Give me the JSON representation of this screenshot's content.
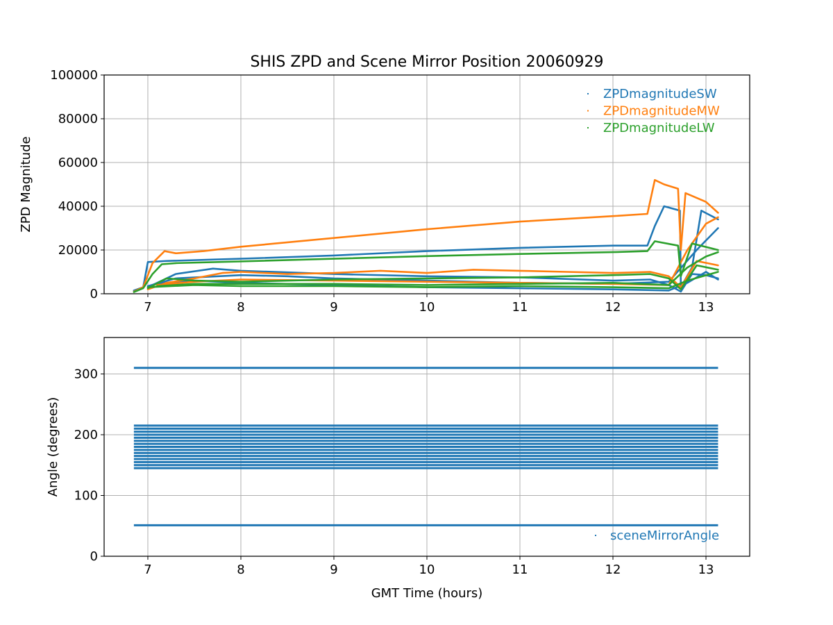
{
  "chart_data": [
    {
      "id": "zpd",
      "type": "scatter",
      "title": "SHIS ZPD and Scene Mirror Position 20060929",
      "xlabel": "",
      "ylabel": "ZPD Magnitude",
      "xlim": [
        6.53,
        13.47
      ],
      "ylim": [
        0,
        100000
      ],
      "xticks": [
        7,
        8,
        9,
        10,
        11,
        12,
        13
      ],
      "yticks": [
        0,
        20000,
        40000,
        60000,
        80000,
        100000
      ],
      "grid": true,
      "legend_position": "upper right",
      "series": [
        {
          "name": "ZPDmagnitudeSW",
          "color": "#1f77b4",
          "lines": [
            [
              [
                6.85,
                1500
              ],
              [
                6.95,
                3000
              ],
              [
                7.0,
                14500
              ],
              [
                7.2,
                15000
              ],
              [
                8.0,
                16000
              ],
              [
                9.0,
                17500
              ],
              [
                10.0,
                19500
              ],
              [
                11.0,
                21000
              ],
              [
                12.0,
                22000
              ],
              [
                12.37,
                22000
              ],
              [
                12.45,
                31000
              ],
              [
                12.55,
                40000
              ],
              [
                12.72,
                38000
              ],
              [
                12.73,
                3000
              ],
              [
                12.85,
                12000
              ],
              [
                12.95,
                38000
              ],
              [
                13.13,
                34000
              ]
            ],
            [
              [
                7.0,
                3000
              ],
              [
                7.1,
                5000
              ],
              [
                7.3,
                9000
              ],
              [
                7.7,
                11500
              ],
              [
                8.0,
                10500
              ],
              [
                9.0,
                9000
              ],
              [
                10.0,
                8000
              ],
              [
                11.0,
                7500
              ],
              [
                12.0,
                6000
              ],
              [
                12.4,
                6500
              ],
              [
                12.6,
                4000
              ],
              [
                12.73,
                1000
              ],
              [
                12.85,
                9000
              ],
              [
                13.0,
                8500
              ],
              [
                13.13,
                7000
              ]
            ],
            [
              [
                7.1,
                4500
              ],
              [
                7.5,
                6000
              ],
              [
                8.0,
                5000
              ],
              [
                9.0,
                4000
              ],
              [
                10.0,
                3000
              ],
              [
                11.0,
                2500
              ],
              [
                12.0,
                2000
              ],
              [
                12.6,
                1500
              ],
              [
                12.8,
                5000
              ],
              [
                13.0,
                10000
              ],
              [
                13.13,
                6500
              ]
            ],
            [
              [
                7.0,
                3500
              ],
              [
                7.3,
                7000
              ],
              [
                8.0,
                8500
              ],
              [
                8.5,
                8000
              ],
              [
                9.0,
                7000
              ],
              [
                9.5,
                6500
              ],
              [
                10.0,
                6000
              ],
              [
                10.5,
                5500
              ],
              [
                11.0,
                5000
              ],
              [
                12.0,
                4500
              ],
              [
                12.6,
                5500
              ],
              [
                12.9,
                20000
              ],
              [
                13.13,
                30000
              ]
            ]
          ]
        },
        {
          "name": "ZPDmagnitudeMW",
          "color": "#ff7f0e",
          "lines": [
            [
              [
                6.85,
                1000
              ],
              [
                6.95,
                3000
              ],
              [
                7.05,
                14000
              ],
              [
                7.18,
                19500
              ],
              [
                7.3,
                18500
              ],
              [
                7.6,
                19500
              ],
              [
                8.0,
                21500
              ],
              [
                9.0,
                25500
              ],
              [
                10.0,
                29500
              ],
              [
                11.0,
                33000
              ],
              [
                12.0,
                35500
              ],
              [
                12.37,
                36500
              ],
              [
                12.45,
                52000
              ],
              [
                12.55,
                50000
              ],
              [
                12.7,
                48000
              ],
              [
                12.73,
                20000
              ],
              [
                12.78,
                46000
              ],
              [
                13.0,
                42000
              ],
              [
                13.13,
                37000
              ]
            ],
            [
              [
                7.0,
                2000
              ],
              [
                7.2,
                5000
              ],
              [
                7.5,
                7000
              ],
              [
                7.8,
                9500
              ],
              [
                8.0,
                10000
              ],
              [
                8.5,
                9000
              ],
              [
                9.0,
                9500
              ],
              [
                9.5,
                10500
              ],
              [
                10.0,
                9500
              ],
              [
                10.5,
                11000
              ],
              [
                11.0,
                10500
              ],
              [
                11.5,
                10000
              ],
              [
                12.0,
                9500
              ],
              [
                12.4,
                10000
              ],
              [
                12.6,
                8000
              ],
              [
                12.73,
                3000
              ],
              [
                12.9,
                15000
              ],
              [
                13.13,
                13000
              ]
            ],
            [
              [
                7.1,
                4000
              ],
              [
                7.5,
                5500
              ],
              [
                8.0,
                6500
              ],
              [
                9.0,
                6000
              ],
              [
                10.0,
                5500
              ],
              [
                11.0,
                5000
              ],
              [
                12.0,
                4500
              ],
              [
                12.6,
                4000
              ],
              [
                12.8,
                20000
              ],
              [
                13.0,
                32000
              ],
              [
                13.13,
                35000
              ]
            ]
          ]
        },
        {
          "name": "ZPDmagnitudeLW",
          "color": "#2ca02c",
          "lines": [
            [
              [
                6.85,
                800
              ],
              [
                6.95,
                2500
              ],
              [
                7.05,
                9000
              ],
              [
                7.15,
                13500
              ],
              [
                7.3,
                14000
              ],
              [
                8.0,
                14800
              ],
              [
                9.0,
                16000
              ],
              [
                10.0,
                17200
              ],
              [
                11.0,
                18200
              ],
              [
                12.0,
                19000
              ],
              [
                12.37,
                19500
              ],
              [
                12.45,
                24000
              ],
              [
                12.7,
                22000
              ],
              [
                12.73,
                8000
              ],
              [
                12.85,
                23000
              ],
              [
                13.13,
                20000
              ]
            ],
            [
              [
                7.0,
                2500
              ],
              [
                7.2,
                7000
              ],
              [
                7.5,
                6000
              ],
              [
                8.0,
                5500
              ],
              [
                9.0,
                6500
              ],
              [
                10.0,
                7000
              ],
              [
                11.0,
                7500
              ],
              [
                12.0,
                8500
              ],
              [
                12.4,
                9000
              ],
              [
                12.6,
                7000
              ],
              [
                12.73,
                2000
              ],
              [
                12.9,
                13000
              ],
              [
                13.13,
                11000
              ]
            ],
            [
              [
                7.1,
                3500
              ],
              [
                7.5,
                4500
              ],
              [
                8.0,
                4500
              ],
              [
                9.0,
                4500
              ],
              [
                10.0,
                4000
              ],
              [
                11.0,
                4500
              ],
              [
                12.0,
                5000
              ],
              [
                12.6,
                4000
              ],
              [
                12.8,
                12000
              ],
              [
                13.0,
                17000
              ],
              [
                13.13,
                19000
              ]
            ],
            [
              [
                7.0,
                3000
              ],
              [
                7.5,
                4000
              ],
              [
                8.0,
                3500
              ],
              [
                9.0,
                3500
              ],
              [
                10.0,
                3000
              ],
              [
                11.0,
                3500
              ],
              [
                12.0,
                3000
              ],
              [
                12.6,
                2500
              ],
              [
                12.8,
                6000
              ],
              [
                13.13,
                10000
              ]
            ]
          ]
        }
      ]
    },
    {
      "id": "mirror",
      "type": "scatter",
      "title": "",
      "xlabel": "GMT Time (hours)",
      "ylabel": "Angle (degrees)",
      "xlim": [
        6.53,
        13.47
      ],
      "ylim": [
        0,
        360
      ],
      "xticks": [
        7,
        8,
        9,
        10,
        11,
        12,
        13
      ],
      "yticks": [
        0,
        100,
        200,
        300
      ],
      "grid": true,
      "legend_position": "lower right",
      "series": [
        {
          "name": "sceneMirrorAngle",
          "color": "#1f77b4",
          "x_range": [
            6.85,
            13.13
          ],
          "levels": [
            51,
            145,
            150,
            155,
            160,
            165,
            170,
            175,
            180,
            185,
            190,
            195,
            200,
            205,
            210,
            215,
            310
          ]
        }
      ]
    }
  ]
}
